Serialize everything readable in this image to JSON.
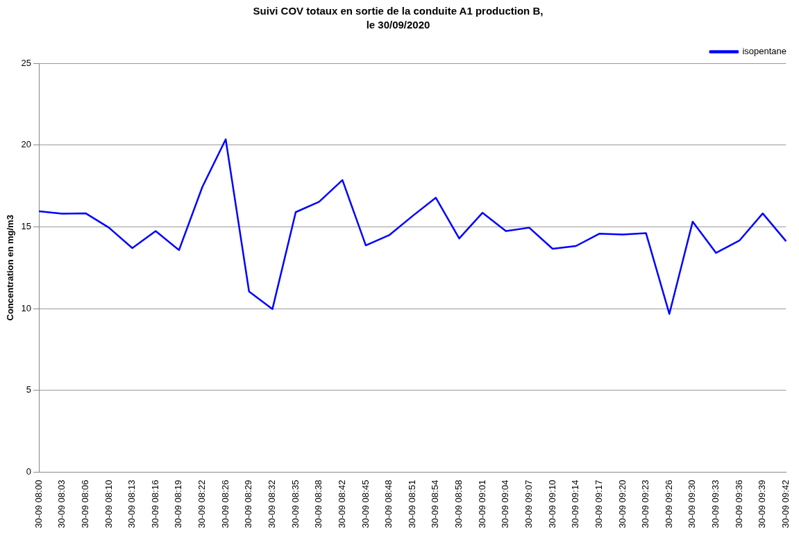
{
  "chart_data": {
    "type": "line",
    "title": "Suivi COV totaux en sortie de la conduite A1 production B,",
    "subtitle": "le 30/09/2020",
    "ylabel": "Concentration en mg/m3",
    "categories": [
      "30-09 08:00",
      "30-09 08:03",
      "30-09 08:06",
      "30-09 08:10",
      "30-09 08:13",
      "30-09 08:16",
      "30-09 08:19",
      "30-09 08:22",
      "30-09 08:26",
      "30-09 08:29",
      "30-09 08:32",
      "30-09 08:35",
      "30-09 08:38",
      "30-09 08:42",
      "30-09 08:45",
      "30-09 08:48",
      "30-09 08:51",
      "30-09 08:54",
      "30-09 08:58",
      "30-09 09:01",
      "30-09 09:04",
      "30-09 09:07",
      "30-09 09:10",
      "30-09 09:14",
      "30-09 09:17",
      "30-09 09:20",
      "30-09 09:23",
      "30-09 09:26",
      "30-09 09:30",
      "30-09 09:33",
      "30-09 09:36",
      "30-09 09:39",
      "30-09 09:42"
    ],
    "series": [
      {
        "name": "isopentane",
        "color": "#0000ff",
        "values": [
          15.95,
          15.8,
          15.83,
          14.95,
          13.7,
          14.74,
          13.58,
          17.44,
          20.35,
          11.05,
          9.97,
          15.9,
          16.53,
          17.86,
          13.87,
          14.49,
          15.66,
          16.78,
          14.29,
          15.86,
          14.74,
          14.95,
          13.66,
          13.83,
          14.58,
          14.53,
          14.62,
          9.68,
          15.32,
          13.41,
          14.16,
          15.82,
          14.12
        ]
      }
    ],
    "ylim": [
      0,
      25
    ],
    "yticks": [
      0,
      5,
      10,
      15,
      20,
      25
    ],
    "grid": "y",
    "legend": "top right",
    "marker": "none",
    "line_style": "solid"
  }
}
